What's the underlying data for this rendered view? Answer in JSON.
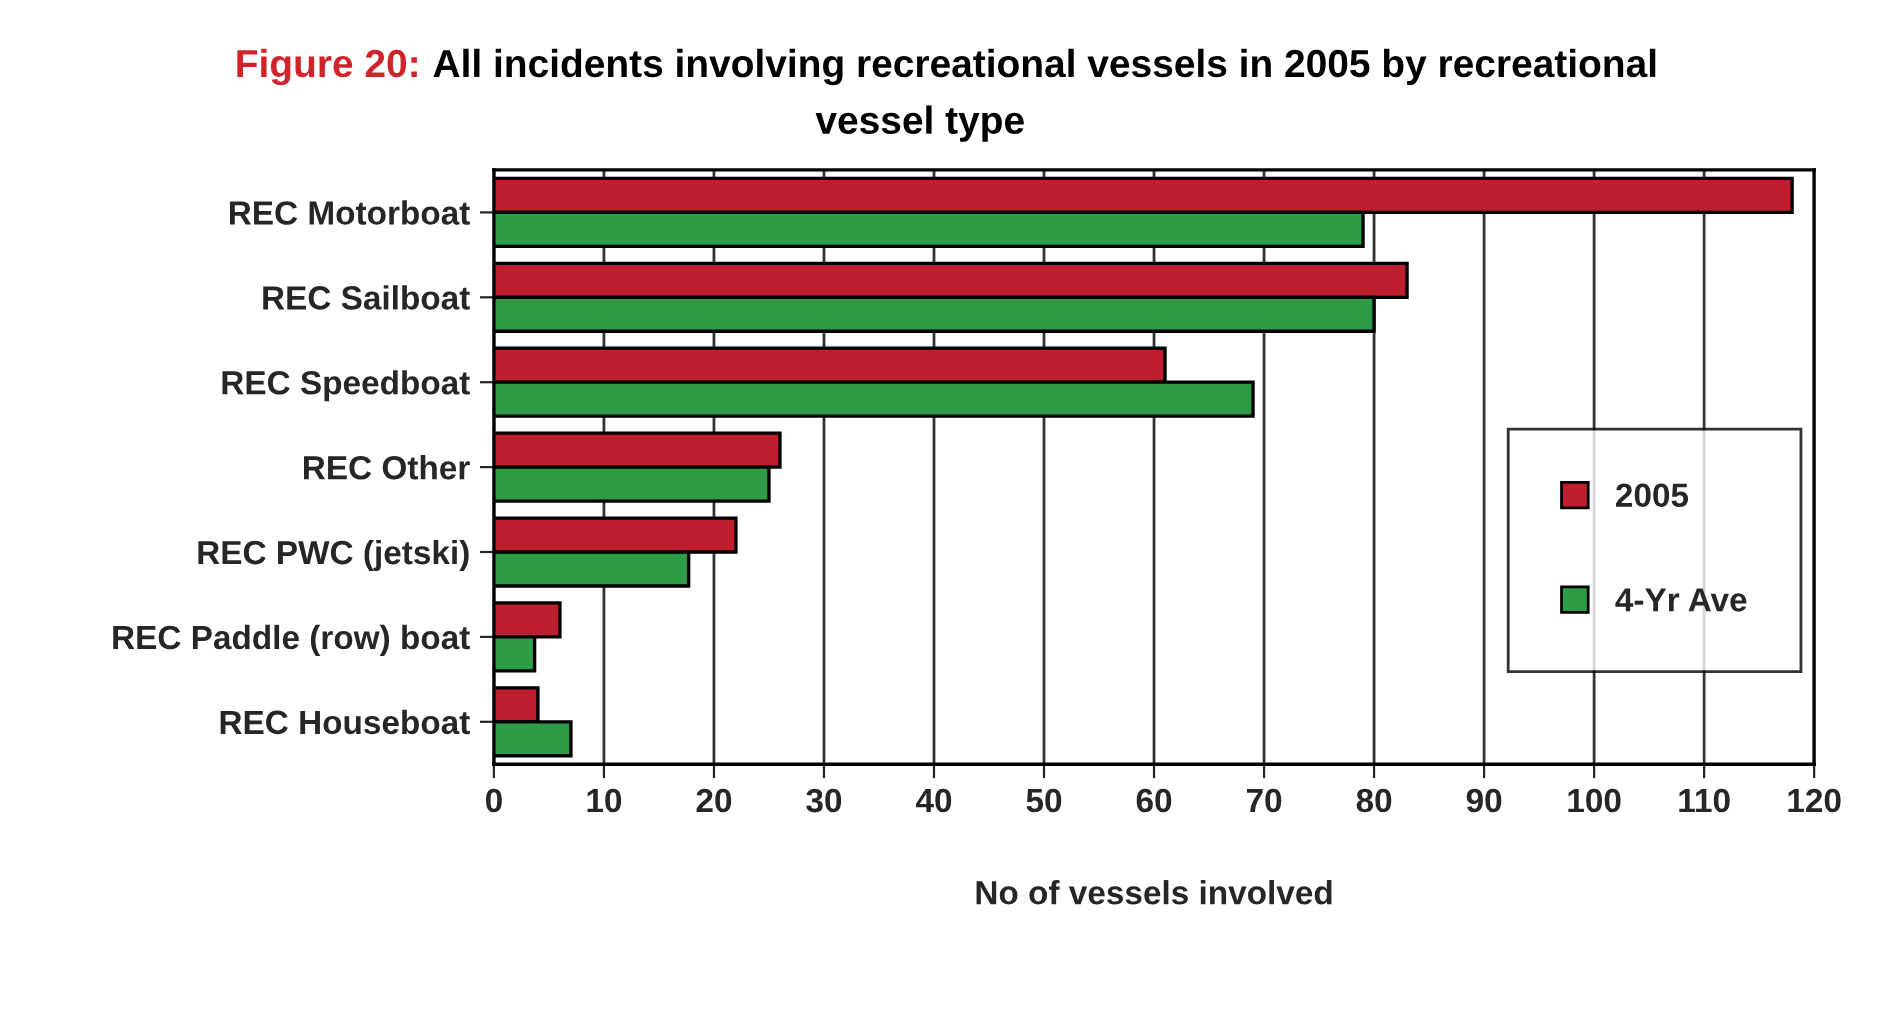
{
  "chart_data": {
    "type": "bar",
    "orientation": "horizontal",
    "title": "Figure 20: All incidents involving recreational vessels in 2005 by recreational vessel type",
    "xlabel": "No of vessels involved",
    "categories": [
      "REC Motorboat",
      "REC Sailboat",
      "REC Speedboat",
      "REC Other",
      "REC PWC (jetski)",
      "REC Paddle (row) boat",
      "REC Houseboat"
    ],
    "series": [
      {
        "name": "2005",
        "color": "#be1e2d",
        "values": [
          118,
          83,
          61,
          26,
          22,
          6,
          4
        ]
      },
      {
        "name": "4-Yr Ave",
        "color": "#2e9b47",
        "values": [
          79,
          80,
          69,
          25,
          17.7,
          3.7,
          7
        ]
      }
    ],
    "xlim": [
      0,
      120
    ],
    "xticks": [
      0,
      10,
      20,
      30,
      40,
      50,
      60,
      70,
      80,
      90,
      100,
      110,
      120
    ],
    "grid": "x",
    "legend": "right"
  }
}
